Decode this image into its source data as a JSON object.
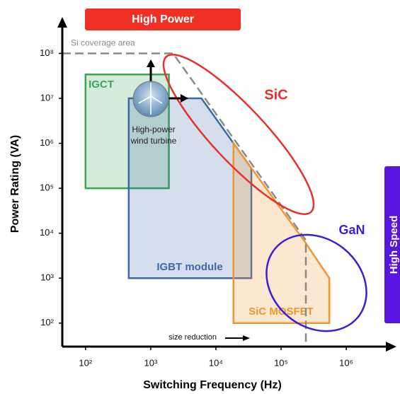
{
  "chart_data": {
    "type": "region",
    "x_label": "Switching Frequency (Hz)",
    "y_label": "Power Rating (VA)",
    "log_x": true,
    "log_y": true,
    "xlim": [
      44,
      5200000
    ],
    "ylim": [
      30,
      520000000
    ],
    "xticks": [
      {
        "value": 100,
        "label": "10²"
      },
      {
        "value": 1000,
        "label": "10³"
      },
      {
        "value": 10000,
        "label": "10⁴"
      },
      {
        "value": 100000,
        "label": "10⁵"
      },
      {
        "value": 1000000,
        "label": "10⁶"
      }
    ],
    "yticks": [
      {
        "value": 100,
        "label": "10²"
      },
      {
        "value": 1000,
        "label": "10³"
      },
      {
        "value": 10000,
        "label": "10⁴"
      },
      {
        "value": 100000,
        "label": "10⁵"
      },
      {
        "value": 1000000,
        "label": "10⁶"
      },
      {
        "value": 10000000,
        "label": "10⁷"
      },
      {
        "value": 100000000,
        "label": "10⁸"
      }
    ],
    "regions": [
      {
        "name": "IGCT",
        "color": "#3aa655",
        "x": [
          100,
          1900,
          1900,
          100
        ],
        "y": [
          100000,
          100000,
          34000000,
          34000000
        ]
      },
      {
        "name": "IGBT module",
        "color": "#3d68a8",
        "x": [
          460,
          35000,
          35000,
          6000,
          460
        ],
        "y": [
          1000,
          1000,
          280000,
          10000000,
          10000000
        ]
      },
      {
        "name": "SiC MOSFET",
        "color": "#f0962e",
        "x": [
          18600,
          550000,
          550000,
          240000,
          18600
        ],
        "y": [
          100,
          100,
          1000,
          6000,
          1000000
        ]
      }
    ],
    "boundary": {
      "name": "Si coverage area",
      "color": "#8a8a8a",
      "x": [
        44,
        2200,
        240000,
        240000
      ],
      "y": [
        100000000,
        100000000,
        7000,
        30
      ]
    },
    "annotations": [
      "High Power",
      "High Speed",
      "SiC",
      "GaN",
      "High-power",
      "wind turbine",
      "size reduction"
    ]
  }
}
